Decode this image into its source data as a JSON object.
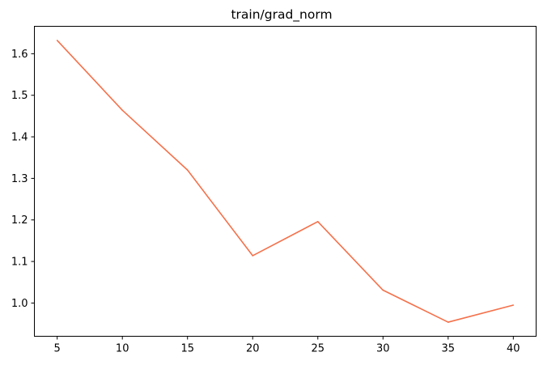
{
  "chart_data": {
    "type": "line",
    "title": "train/grad_norm",
    "xlabel": "",
    "ylabel": "",
    "x": [
      5,
      10,
      15,
      20,
      25,
      30,
      35,
      40
    ],
    "series": [
      {
        "values": [
          1.632,
          1.464,
          1.32,
          1.114,
          1.196,
          1.031,
          0.954,
          0.995
        ]
      }
    ],
    "xticks": [
      5,
      10,
      15,
      20,
      25,
      30,
      35,
      40
    ],
    "yticks": [
      "1.0",
      "1.1",
      "1.2",
      "1.3",
      "1.4",
      "1.5",
      "1.6"
    ],
    "xlim": [
      3.25,
      41.75
    ],
    "ylim": [
      0.92,
      1.666
    ],
    "grid": false,
    "line_color": "#f4714b"
  }
}
